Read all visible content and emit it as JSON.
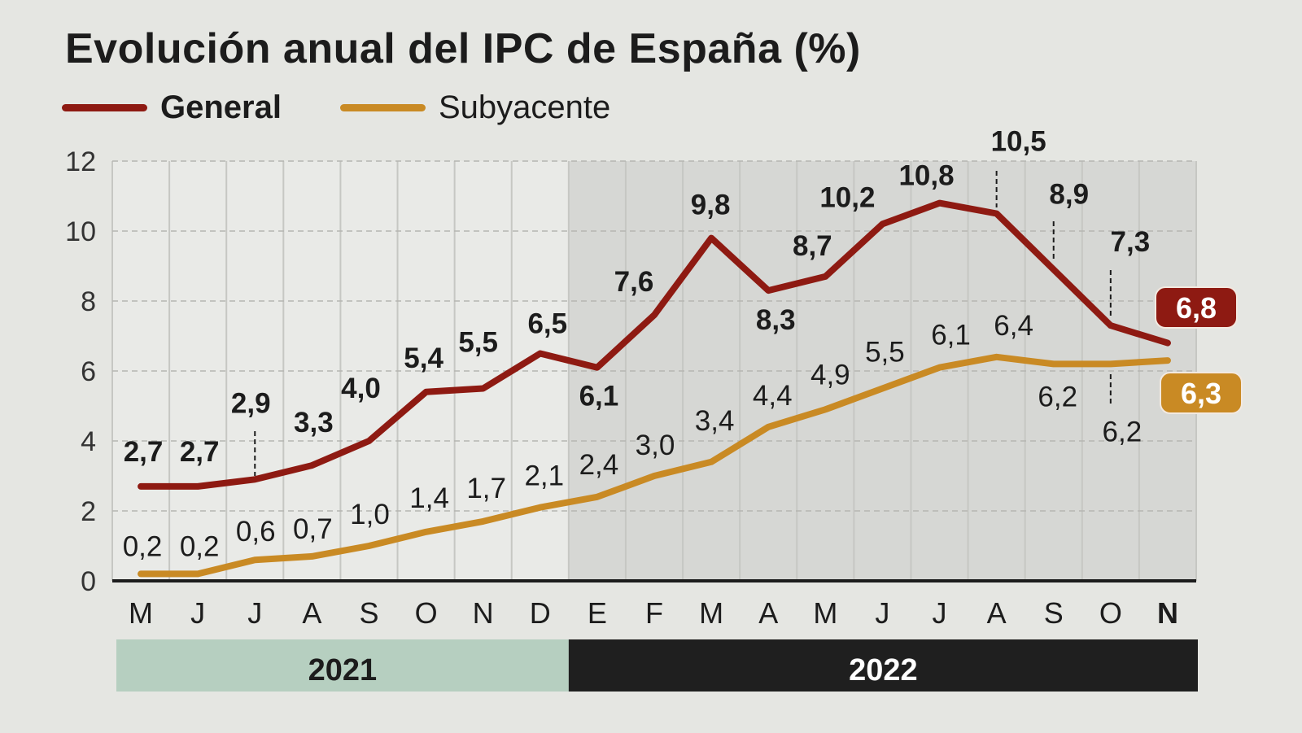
{
  "chart_data": {
    "type": "line",
    "title": "Evolución anual del IPC de España (%)",
    "categories": [
      "M",
      "J",
      "J",
      "A",
      "S",
      "O",
      "N",
      "D",
      "E",
      "F",
      "M",
      "A",
      "M",
      "J",
      "J",
      "A",
      "S",
      "O",
      "N"
    ],
    "year_groups": [
      {
        "label": "2021",
        "months": 8,
        "color": "#b6cfc0"
      },
      {
        "label": "2022",
        "months": 11,
        "color": "#1f1f1f"
      }
    ],
    "yticks": [
      0,
      2,
      4,
      6,
      8,
      10,
      12
    ],
    "ylim": [
      0,
      12
    ],
    "grid": true,
    "legend": "top-left",
    "series": [
      {
        "name": "General",
        "color": "#8e1a12",
        "values": [
          2.7,
          2.7,
          2.9,
          3.3,
          4.0,
          5.4,
          5.5,
          6.5,
          6.1,
          7.6,
          9.8,
          8.3,
          8.7,
          10.2,
          10.8,
          10.5,
          8.9,
          7.3,
          6.8
        ],
        "labels": [
          "2,7",
          "2,7",
          "2,9",
          "3,3",
          "4,0",
          "5,4",
          "5,5",
          "6,5",
          "6,1",
          "7,6",
          "9,8",
          "8,3",
          "8,7",
          "10,2",
          "10,8",
          "10,5",
          "8,9",
          "7,3",
          "6,8"
        ]
      },
      {
        "name": "Subyacente",
        "color": "#c98a24",
        "values": [
          0.2,
          0.2,
          0.6,
          0.7,
          1.0,
          1.4,
          1.7,
          2.1,
          2.4,
          3.0,
          3.4,
          4.4,
          4.9,
          5.5,
          6.1,
          6.4,
          6.2,
          6.2,
          6.3
        ],
        "labels": [
          "0,2",
          "0,2",
          "0,6",
          "0,7",
          "1,0",
          "1,4",
          "1,7",
          "2,1",
          "2,4",
          "3,0",
          "3,4",
          "4,4",
          "4,9",
          "5,5",
          "6,1",
          "6,4",
          "6,2",
          "6,2",
          "6,3"
        ]
      }
    ]
  }
}
